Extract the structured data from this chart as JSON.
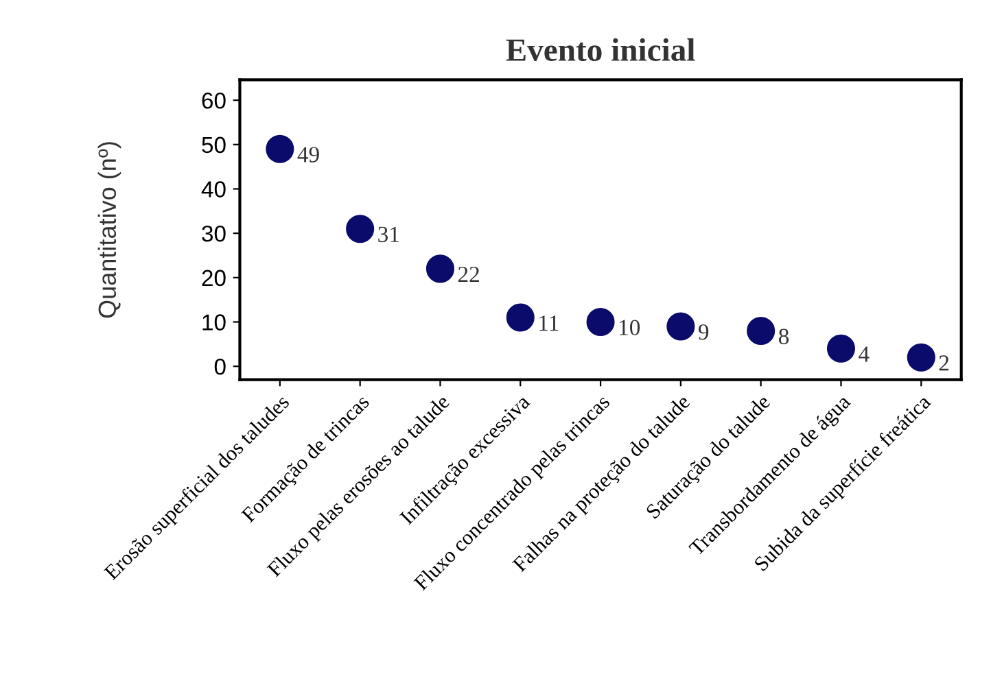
{
  "chart_data": {
    "type": "scatter",
    "title": "Evento inicial",
    "ylabel": "Quantitativo (nº)",
    "categories": [
      "Erosão superficial dos taludes",
      "Formação de trincas",
      "Fluxo pelas erosões ao talude",
      "Infiltração excessiva",
      "Fluxo concentrado pelas trincas",
      "Falhas na proteção do talude",
      "Saturação do talude",
      "Transbordamento de água",
      "Subida da superfície freática"
    ],
    "series": [
      {
        "color": "#0b0b6b",
        "values": [
          49,
          31,
          22,
          11,
          10,
          9,
          8,
          4,
          2
        ]
      }
    ],
    "ylim": [
      -3,
      64.6
    ],
    "yticks": [
      0,
      10,
      20,
      30,
      40,
      50,
      60
    ],
    "data_labels": true,
    "grid": false,
    "legend": false,
    "marker": "circle"
  }
}
